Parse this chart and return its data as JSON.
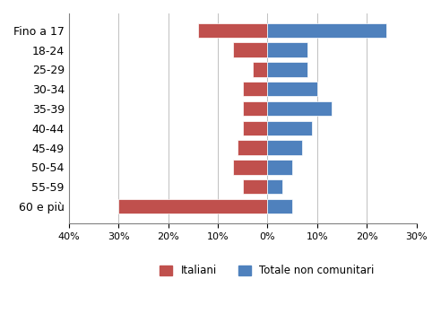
{
  "categories": [
    "Fino a 17",
    "18-24",
    "25-29",
    "30-34",
    "35-39",
    "40-44",
    "45-49",
    "50-54",
    "55-59",
    "60 e più"
  ],
  "italiani": [
    14.0,
    7.0,
    3.0,
    5.0,
    5.0,
    5.0,
    6.0,
    7.0,
    5.0,
    30.0
  ],
  "non_comunitari": [
    24.0,
    8.0,
    8.0,
    10.0,
    13.0,
    9.0,
    7.0,
    5.0,
    3.0,
    5.0
  ],
  "color_italiani": "#c0504d",
  "color_non_comunitari": "#4f81bd",
  "xlim": [
    -40,
    30
  ],
  "xticks": [
    -40,
    -30,
    -20,
    -10,
    0,
    10,
    20,
    30
  ],
  "xticklabels": [
    "40%",
    "30%",
    "20%",
    "10%",
    "0%",
    "10%",
    "20%",
    "30%"
  ],
  "legend_italiani": "Italiani",
  "legend_non_comunitari": "Totale non comunitari",
  "bg_color": "#ffffff",
  "bar_height": 0.75
}
